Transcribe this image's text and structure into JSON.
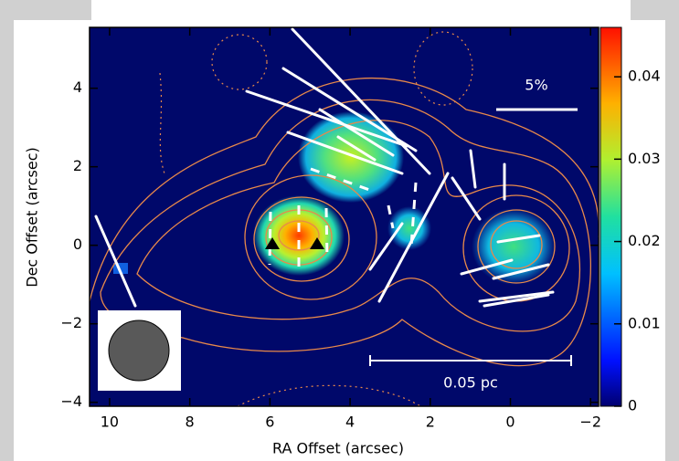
{
  "chart_data": {
    "type": "image",
    "xlabel": "RA Offset (arcsec)",
    "ylabel": "Dec Offset (arcsec)",
    "xlim": [
      10.5,
      -2.2
    ],
    "xticks": [
      10,
      8,
      6,
      4,
      2,
      0,
      {
        "value": -2,
        "label": "−2"
      }
    ],
    "ylim": [
      -4.1,
      5.55
    ],
    "yticks": [
      {
        "value": -4,
        "label": "−4"
      },
      {
        "value": -2,
        "label": "−2"
      },
      0,
      2,
      4
    ],
    "colorbar": {
      "lim": [
        0,
        0.046
      ],
      "ticks": [
        0,
        0.01,
        0.02,
        0.03,
        0.04
      ]
    },
    "annotations": [
      "5%",
      "0.05 pc"
    ]
  }
}
